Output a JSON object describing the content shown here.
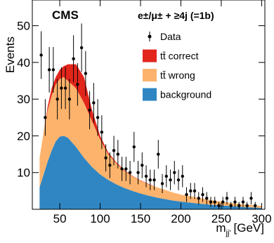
{
  "chart_data": {
    "type": "stacked-area",
    "brand": "CMS",
    "selection": "e±/μ± + ≥4j (=1b)",
    "y_label": "Events",
    "x_label": {
      "main": "m",
      "sub": "jj'",
      "unit": "[GeV]"
    },
    "x": [
      25,
      30,
      35,
      40,
      45,
      50,
      55,
      60,
      70,
      80,
      90,
      100,
      110,
      120,
      130,
      140,
      150,
      160,
      170,
      180,
      190,
      200,
      220,
      240,
      260,
      280,
      300
    ],
    "series": [
      {
        "name": "background",
        "color": "#2f86c3",
        "values": [
          6,
          9.5,
          13,
          16,
          18.5,
          19.8,
          20,
          19.5,
          17,
          14,
          11.5,
          9.5,
          8,
          6.8,
          5.8,
          5,
          4.3,
          3.7,
          3.2,
          2.8,
          2.4,
          2.1,
          1.6,
          1.2,
          0.9,
          0.6,
          0.4
        ]
      },
      {
        "name": "tt̄ wrong",
        "color": "#fdb36c",
        "values": [
          8,
          11.5,
          14,
          15,
          15.5,
          15.7,
          16,
          15.5,
          16,
          15,
          12.5,
          9.5,
          7,
          5.7,
          4.7,
          4,
          3.5,
          3.1,
          2.8,
          2.5,
          2.2,
          1.9,
          1.6,
          1.2,
          0.9,
          0.7,
          0.5
        ]
      },
      {
        "name": "tt̄ correct",
        "color": "#e2261c",
        "values": [
          0,
          0,
          1,
          2,
          2,
          2.5,
          3,
          4.5,
          6.5,
          7,
          3,
          1,
          0.5,
          0.3,
          0.2,
          0.1,
          0.1,
          0.1,
          0,
          0,
          0,
          0,
          0,
          0,
          0,
          0,
          0
        ]
      }
    ],
    "data": {
      "name": "Data",
      "color": "#000000",
      "x": [
        27,
        32,
        37,
        42,
        47,
        52,
        57,
        62,
        67,
        72,
        77,
        82,
        87,
        92,
        97,
        102,
        107,
        112,
        117,
        122,
        127,
        132,
        137,
        142,
        147,
        152,
        157,
        162,
        167,
        172,
        177,
        182,
        187,
        192,
        197,
        202,
        207,
        212,
        217,
        222,
        227,
        232,
        237,
        242,
        247,
        252,
        257,
        262,
        267,
        272,
        277,
        282,
        287,
        292
      ],
      "values": [
        42,
        25,
        38,
        38,
        30,
        33,
        33,
        30,
        41,
        34,
        44,
        37,
        27,
        29,
        25,
        21,
        14,
        12,
        16,
        15,
        11,
        11,
        10,
        17,
        10,
        12,
        9,
        8,
        8,
        15,
        7,
        9,
        8,
        10,
        8,
        9,
        4,
        5,
        5,
        3,
        4,
        3,
        2,
        2,
        1,
        2,
        3,
        1,
        2,
        1,
        2,
        1,
        3,
        1
      ],
      "errors": [
        6.5,
        5,
        6.2,
        6.2,
        5.5,
        5.7,
        5.7,
        5.5,
        6.4,
        5.8,
        6.6,
        6.1,
        5.2,
        5.4,
        5,
        4.6,
        3.7,
        3.5,
        4,
        3.9,
        3.3,
        3.3,
        3.2,
        4.1,
        3.2,
        3.5,
        3,
        2.8,
        2.8,
        3.9,
        2.6,
        3,
        2.8,
        3.2,
        2.8,
        3,
        2,
        2.2,
        2.2,
        1.7,
        2,
        1.7,
        1.4,
        1.4,
        1,
        1.4,
        1.7,
        1,
        1.4,
        1,
        1.4,
        1,
        1.7,
        1
      ]
    },
    "xlim": [
      16,
      304
    ],
    "ylim": [
      0,
      57
    ],
    "xticks": [
      50,
      100,
      150,
      200,
      250,
      300
    ],
    "yticks": [
      10,
      20,
      30,
      40,
      50
    ]
  }
}
